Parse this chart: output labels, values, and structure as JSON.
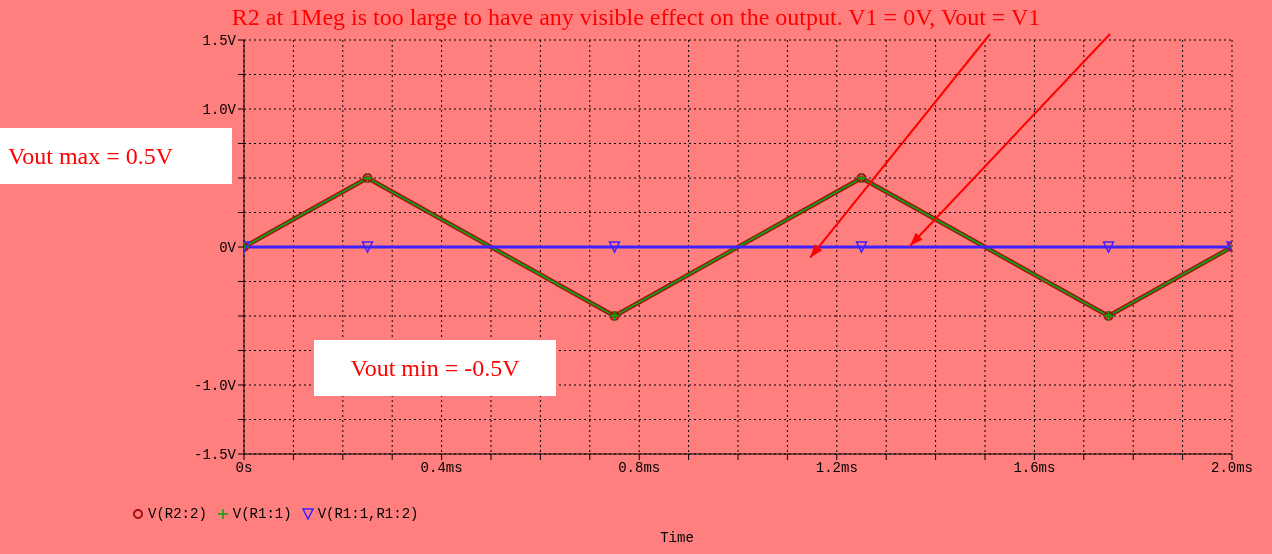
{
  "chart_data": {
    "type": "line",
    "xlabel": "Time",
    "annotations": [
      "R2 at 1Meg is too large to have any visible effect on the output. V1 = 0V, Vout = V1",
      "Vout max = 0.5V",
      "Vout min = -0.5V"
    ],
    "x": [
      0,
      0.25,
      0.75,
      1.25,
      1.75,
      2.0
    ],
    "series": [
      {
        "name": "V(R2:2)",
        "color": "#a01010",
        "marker": "circle",
        "values": [
          0,
          0.5,
          -0.5,
          0.5,
          -0.5,
          0
        ]
      },
      {
        "name": "V(R1:1)",
        "color": "#10a010",
        "marker": "cross",
        "values": [
          0,
          0.5,
          -0.5,
          0.5,
          -0.5,
          0
        ]
      },
      {
        "name": "V(R1:1,R1:2)",
        "color": "#4020ff",
        "marker": "triangle",
        "values": [
          0,
          0,
          0,
          0,
          0,
          0
        ]
      }
    ],
    "xlim": [
      0,
      2.0
    ],
    "xticks": [
      {
        "value": 0,
        "label": "0s"
      },
      {
        "value": 0.1,
        "label": null
      },
      {
        "value": 0.2,
        "label": null
      },
      {
        "value": 0.3,
        "label": null
      },
      {
        "value": 0.4,
        "label": "0.4ms"
      },
      {
        "value": 0.5,
        "label": null
      },
      {
        "value": 0.6,
        "label": null
      },
      {
        "value": 0.7,
        "label": null
      },
      {
        "value": 0.8,
        "label": "0.8ms"
      },
      {
        "value": 0.9,
        "label": null
      },
      {
        "value": 1.0,
        "label": null
      },
      {
        "value": 1.1,
        "label": null
      },
      {
        "value": 1.2,
        "label": "1.2ms"
      },
      {
        "value": 1.3,
        "label": null
      },
      {
        "value": 1.4,
        "label": null
      },
      {
        "value": 1.5,
        "label": null
      },
      {
        "value": 1.6,
        "label": "1.6ms"
      },
      {
        "value": 1.7,
        "label": null
      },
      {
        "value": 1.8,
        "label": null
      },
      {
        "value": 1.9,
        "label": null
      },
      {
        "value": 2.0,
        "label": "2.0ms"
      }
    ],
    "ylim": [
      -1.5,
      1.5
    ],
    "yticks": [
      {
        "value": -1.5,
        "label": "-1.5V"
      },
      {
        "value": -1.25,
        "label": null
      },
      {
        "value": -1.0,
        "label": "-1.0V"
      },
      {
        "value": -0.75,
        "label": null
      },
      {
        "value": -0.5,
        "label": null
      },
      {
        "value": -0.25,
        "label": null
      },
      {
        "value": 0,
        "label": "0V"
      },
      {
        "value": 0.25,
        "label": null
      },
      {
        "value": 0.5,
        "label": null
      },
      {
        "value": 0.75,
        "label": null
      },
      {
        "value": 1.0,
        "label": "1.0V"
      },
      {
        "value": 1.25,
        "label": null
      },
      {
        "value": 1.5,
        "label": "1.5V"
      }
    ],
    "grid": true,
    "legend": "bottom left",
    "line_style": "solid"
  }
}
